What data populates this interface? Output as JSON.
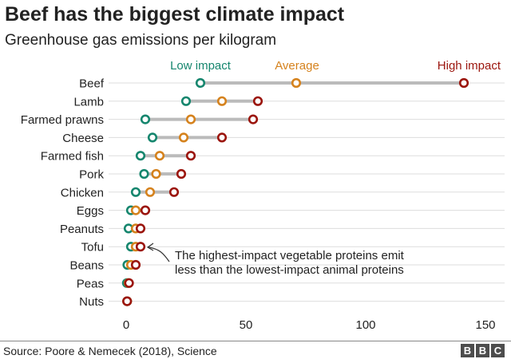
{
  "title": "Beef has the biggest climate impact",
  "subtitle": "Greenhouse gas emissions per kilogram",
  "source": "Source: Poore & Nemecek (2018), Science",
  "logo": "BBC",
  "chart_data": {
    "type": "dot-range",
    "xlim": [
      0,
      150
    ],
    "xticks": [
      0,
      50,
      100,
      150
    ],
    "grid": true,
    "legend_placement": "top",
    "series": [
      {
        "name": "Low impact",
        "color": "#16866e",
        "values": [
          31,
          25,
          8,
          11,
          6,
          7.5,
          4,
          2,
          1,
          2,
          0.5,
          0.3,
          0.4
        ]
      },
      {
        "name": "Average",
        "color": "#d5821d",
        "values": [
          71,
          40,
          27,
          24,
          14,
          12.5,
          10,
          4,
          4,
          4,
          2,
          1,
          0.4
        ]
      },
      {
        "name": "High impact",
        "color": "#9b150d",
        "values": [
          141,
          55,
          53,
          40,
          27,
          23,
          20,
          8,
          6,
          6,
          4,
          1.2,
          0.4
        ]
      }
    ],
    "categories": [
      "Beef",
      "Lamb",
      "Farmed prawns",
      "Cheese",
      "Farmed fish",
      "Pork",
      "Chicken",
      "Eggs",
      "Peanuts",
      "Tofu",
      "Beans",
      "Peas",
      "Nuts"
    ],
    "annotation": {
      "target": "Tofu",
      "lines": [
        "The highest-impact vegetable proteins emit",
        "less than the lowest-impact animal proteins"
      ]
    }
  }
}
